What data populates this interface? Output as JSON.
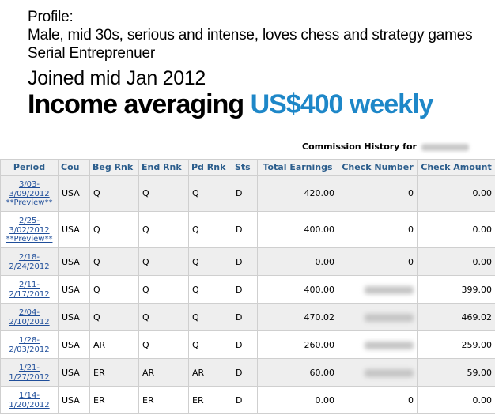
{
  "profile": {
    "heading": "Profile:",
    "description": "Male, mid 30s, serious and intense, loves chess and strategy games",
    "role": "Serial Entreprenuer",
    "joined": "Joined mid Jan 2012",
    "income_prefix": "Income averaging",
    "income_amount": "US$400 weekly",
    "accent_color": "#1e87c8"
  },
  "commission_history": {
    "title": "Commission History for"
  },
  "table": {
    "columns": {
      "period": "Period",
      "country": "Cou",
      "beg_rank": "Beg Rnk",
      "end_rank": "End Rnk",
      "pd_rank": "Pd Rnk",
      "status": "Sts",
      "total_earnings": "Total Earnings",
      "check_number": "Check Number",
      "check_amount": "Check Amount"
    },
    "rows": [
      {
        "p1": "3/03-",
        "p2": "3/09/2012",
        "preview": "**Preview**",
        "country": "USA",
        "beg": "Q",
        "end": "Q",
        "pd": "Q",
        "sts": "D",
        "earn": "420.00",
        "check_no": "0",
        "check_amt": "0.00"
      },
      {
        "p1": "2/25-",
        "p2": "3/02/2012",
        "preview": "**Preview**",
        "country": "USA",
        "beg": "Q",
        "end": "Q",
        "pd": "Q",
        "sts": "D",
        "earn": "400.00",
        "check_no": "0",
        "check_amt": "0.00"
      },
      {
        "p1": "2/18-",
        "p2": "2/24/2012",
        "preview": "",
        "country": "USA",
        "beg": "Q",
        "end": "Q",
        "pd": "Q",
        "sts": "D",
        "earn": "0.00",
        "check_no": "0",
        "check_amt": "0.00"
      },
      {
        "p1": "2/11-",
        "p2": "2/17/2012",
        "preview": "",
        "country": "USA",
        "beg": "Q",
        "end": "Q",
        "pd": "Q",
        "sts": "D",
        "earn": "400.00",
        "check_no": "",
        "check_amt": "399.00"
      },
      {
        "p1": "2/04-",
        "p2": "2/10/2012",
        "preview": "",
        "country": "USA",
        "beg": "Q",
        "end": "Q",
        "pd": "Q",
        "sts": "D",
        "earn": "470.02",
        "check_no": "",
        "check_amt": "469.02"
      },
      {
        "p1": "1/28-",
        "p2": "2/03/2012",
        "preview": "",
        "country": "USA",
        "beg": "AR",
        "end": "Q",
        "pd": "Q",
        "sts": "D",
        "earn": "260.00",
        "check_no": "",
        "check_amt": "259.00"
      },
      {
        "p1": "1/21-",
        "p2": "1/27/2012",
        "preview": "",
        "country": "USA",
        "beg": "ER",
        "end": "AR",
        "pd": "AR",
        "sts": "D",
        "earn": "60.00",
        "check_no": "",
        "check_amt": "59.00"
      },
      {
        "p1": "1/14-",
        "p2": "1/20/2012",
        "preview": "",
        "country": "USA",
        "beg": "ER",
        "end": "ER",
        "pd": "ER",
        "sts": "D",
        "earn": "0.00",
        "check_no": "0",
        "check_amt": "0.00"
      }
    ]
  }
}
